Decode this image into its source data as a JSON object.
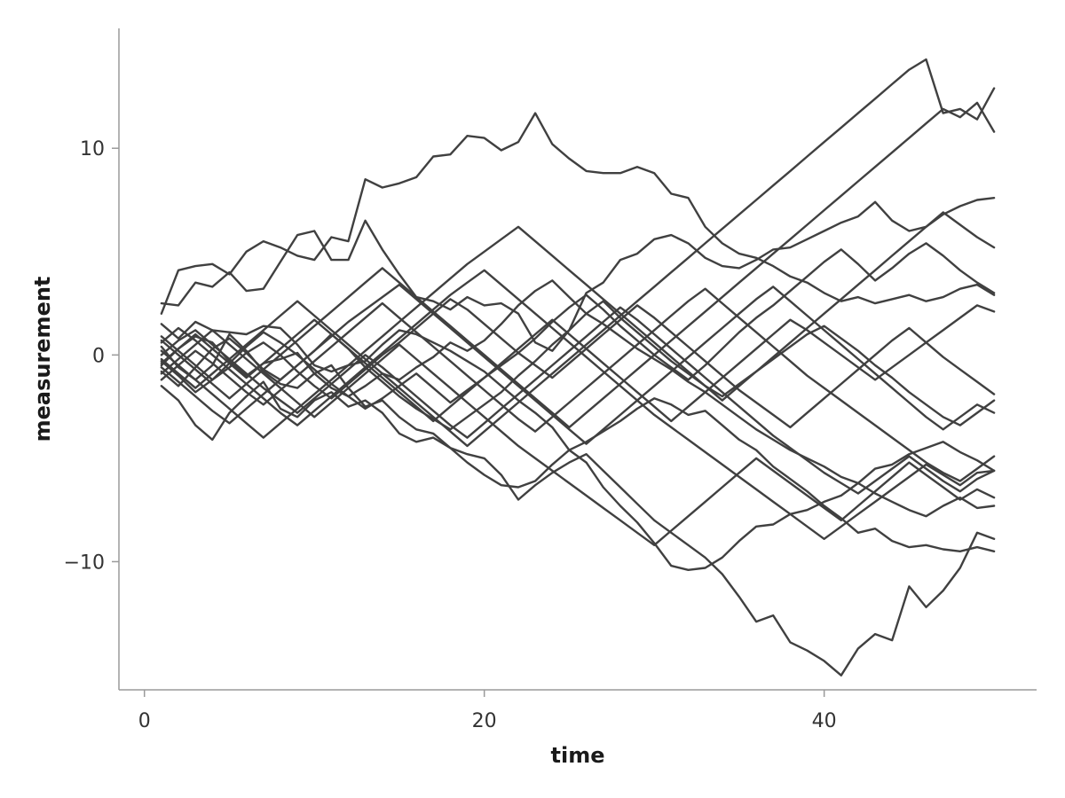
{
  "chart_data": {
    "type": "line",
    "title": "",
    "xlabel": "time",
    "ylabel": "measurement",
    "xlim": [
      -1.5,
      52.5
    ],
    "ylim": [
      -16.2,
      15.8
    ],
    "x_ticks": [
      0,
      20,
      40
    ],
    "y_ticks": [
      -10,
      0,
      10
    ],
    "grid": false,
    "legend": "none",
    "line_color": "#404040",
    "x": [
      1,
      2,
      3,
      4,
      5,
      6,
      7,
      8,
      9,
      10,
      11,
      12,
      13,
      14,
      15,
      16,
      17,
      18,
      19,
      20,
      21,
      22,
      23,
      24,
      25,
      26,
      27,
      28,
      29,
      30,
      31,
      32,
      33,
      34,
      35,
      36,
      37,
      38,
      39,
      40,
      41,
      42,
      43,
      44,
      45,
      46,
      47,
      48,
      49,
      50
    ],
    "series": [
      {
        "values": [
          2.0,
          4.1,
          4.3,
          4.4,
          3.9,
          5.0,
          5.5,
          5.2,
          4.8,
          4.6,
          5.7,
          5.5,
          8.5,
          8.1,
          8.3,
          8.6,
          9.6,
          9.7,
          10.6,
          10.5,
          9.9,
          10.3,
          11.7,
          10.2,
          9.5,
          8.9,
          8.8,
          8.8,
          9.1,
          8.8,
          7.8,
          7.6,
          6.2,
          5.4,
          4.9,
          4.7,
          4.3,
          3.8,
          3.5,
          3.0,
          2.6,
          2.8,
          2.5,
          2.7,
          2.9,
          2.6,
          2.8,
          3.2,
          3.4,
          2.9
        ]
      },
      {
        "values": [
          2.5,
          2.4,
          3.5,
          3.3,
          4.0,
          3.1,
          3.2,
          4.5,
          5.8,
          6.0,
          4.6,
          4.6,
          6.5,
          5.1,
          3.9,
          2.8,
          2.6,
          2.2,
          2.8,
          2.4,
          2.5,
          2.0,
          0.6,
          0.2,
          1.2,
          3.0,
          3.5,
          4.6,
          4.9,
          5.6,
          5.8,
          5.4,
          4.7,
          4.3,
          4.2,
          4.6,
          5.1,
          5.2,
          5.6,
          6.0,
          6.4,
          6.7,
          7.4,
          6.5,
          6.0,
          6.2,
          6.8,
          7.2,
          7.5,
          7.6
        ]
      },
      {
        "values": [
          1.5,
          0.8,
          1.6,
          1.2,
          1.1,
          1.0,
          1.4,
          1.3,
          0.5,
          -0.5,
          -0.8,
          -0.5,
          -0.3,
          0.5,
          1.2,
          1.0,
          0.6,
          0.2,
          -0.3,
          -0.8,
          -1.5,
          -2.2,
          -2.8,
          -3.5,
          -4.6,
          -5.2,
          -6.4,
          -7.3,
          -8.1,
          -9.1,
          -10.2,
          -10.4,
          -10.3,
          -9.8,
          -9.0,
          -8.3,
          -8.2,
          -7.7,
          -7.5,
          -7.1,
          -6.8,
          -6.2,
          -5.5,
          -5.3,
          -4.8,
          -4.5,
          -4.2,
          -4.7,
          -5.1,
          -5.6
        ]
      },
      {
        "values": [
          0.4,
          -0.6,
          -1.2,
          -0.5,
          1.0,
          0.2,
          -0.8,
          -1.4,
          -1.6,
          -0.9,
          -0.5,
          -1.6,
          -2.5,
          -2.2,
          -3.0,
          -3.6,
          -3.8,
          -4.5,
          -5.2,
          -5.8,
          -6.3,
          -6.4,
          -6.1,
          -5.3,
          -4.6,
          -4.2,
          -3.7,
          -3.2,
          -2.6,
          -2.1,
          -2.4,
          -2.9,
          -2.7,
          -3.4,
          -4.1,
          -4.6,
          -5.4,
          -6.0,
          -6.6,
          -7.3,
          -7.9,
          -8.6,
          -8.4,
          -9.0,
          -9.3,
          -9.2,
          -9.4,
          -9.5,
          -9.3,
          -9.5
        ]
      },
      {
        "values": [
          -1.5,
          -2.2,
          -3.4,
          -4.1,
          -2.8,
          -2.0,
          -1.3,
          -2.6,
          -3.0,
          -2.2,
          -1.8,
          -2.5,
          -2.2,
          -2.8,
          -3.8,
          -4.2,
          -4.0,
          -4.5,
          -4.8,
          -5.0,
          -5.8,
          -7.0,
          -6.3,
          -5.7,
          -5.2,
          -4.8,
          -5.6,
          -6.4,
          -7.2,
          -8.0,
          -8.6,
          -9.2,
          -9.8,
          -10.6,
          -11.7,
          -12.9,
          -12.6,
          -13.9,
          -14.3,
          -14.8,
          -15.5,
          -14.2,
          -13.5,
          -13.8,
          -11.2,
          -12.2,
          -11.4,
          -10.3,
          -8.6,
          -8.9
        ]
      },
      {
        "values": [
          -0.5,
          0.3,
          0.9,
          0.6,
          -0.3,
          -1.0,
          -0.4,
          -0.2,
          0.1,
          -0.9,
          -1.6,
          -2.0,
          -1.5,
          -0.9,
          -1.2,
          -0.6,
          -0.1,
          0.6,
          0.2,
          0.7,
          1.5,
          2.4,
          3.1,
          3.6,
          2.8,
          2.0,
          1.5,
          0.9,
          0.3,
          -0.2,
          -0.7,
          -1.3,
          -1.8,
          -2.4,
          -3.0,
          -3.6,
          -4.1,
          -4.6,
          -5.0,
          -5.4,
          -5.9,
          -6.2,
          -6.7,
          -7.1,
          -7.5,
          -7.8,
          -7.3,
          -6.9,
          -7.4,
          -7.3
        ]
      },
      {
        "values": [
          -0.8,
          -1.5,
          -0.6,
          0.3,
          0.8,
          0.1,
          -0.7,
          -1.2,
          -0.5,
          0.2,
          1.0,
          0.3,
          -0.6,
          -1.3,
          -2.0,
          -2.6,
          -3.1,
          -3.6,
          -3.0,
          -2.4,
          -1.8,
          -1.0,
          -0.3,
          0.5,
          1.2,
          2.0,
          2.6,
          1.8,
          1.1,
          0.4,
          -0.3,
          -0.9,
          -1.5,
          -2.0,
          -1.4,
          -0.8,
          -0.2,
          0.4,
          1.0,
          1.4,
          0.8,
          0.2,
          -0.5,
          -1.1,
          -1.8,
          -2.4,
          -3.0,
          -3.4,
          -2.8,
          -2.2
        ]
      },
      {
        "values": [
          -0.3,
          -1.0,
          -1.8,
          -1.2,
          -0.4,
          0.4,
          1.1,
          0.6,
          0.0,
          -0.7,
          -1.4,
          -2.0,
          -2.6,
          -2.1,
          -1.5,
          -0.9,
          -1.6,
          -2.3,
          -1.7,
          -1.1,
          -0.5,
          0.1,
          0.8,
          1.6,
          2.3,
          2.9,
          2.2,
          1.4,
          0.7,
          0.0,
          -0.6,
          -1.2,
          -0.5,
          0.3,
          1.1,
          1.8,
          2.4,
          3.1,
          3.8,
          4.5,
          5.1,
          4.4,
          3.6,
          4.2,
          4.9,
          5.4,
          4.8,
          4.1,
          3.5,
          3.0
        ]
      },
      {
        "values": [
          0.9,
          0.2,
          -0.5,
          -1.2,
          -0.6,
          0.1,
          0.6,
          0.0,
          -0.8,
          -1.5,
          -2.1,
          -1.4,
          -0.7,
          0.0,
          0.6,
          1.3,
          2.0,
          2.7,
          2.2,
          1.5,
          0.8,
          0.1,
          -0.5,
          -1.1,
          -0.4,
          0.3,
          1.0,
          1.7,
          2.4,
          1.8,
          1.1,
          0.4,
          -0.3,
          -1.0,
          -1.7,
          -2.3,
          -2.9,
          -3.5,
          -2.8,
          -2.1,
          -1.4,
          -0.7,
          0.0,
          0.7,
          1.3,
          0.6,
          -0.1,
          -0.7,
          -1.3,
          -1.9
        ]
      },
      {
        "values": [
          -1.2,
          -0.5,
          0.2,
          -0.4,
          -1.1,
          -1.8,
          -2.4,
          -1.7,
          -1.0,
          -0.3,
          0.4,
          1.1,
          1.8,
          2.5,
          1.8,
          1.1,
          0.4,
          -0.3,
          -1.0,
          -1.7,
          -2.4,
          -3.1,
          -3.7,
          -3.0,
          -2.3,
          -1.6,
          -0.9,
          -0.2,
          0.5,
          1.2,
          1.9,
          2.6,
          3.2,
          2.5,
          1.8,
          1.1,
          0.4,
          -0.3,
          -1.0,
          -1.6,
          -2.2,
          -2.8,
          -3.4,
          -4.0,
          -4.6,
          -5.2,
          -5.7,
          -6.1,
          -5.5,
          -4.9
        ]
      },
      {
        "values": [
          0.0,
          0.7,
          1.2,
          0.5,
          -0.2,
          -0.9,
          -1.6,
          -2.2,
          -2.8,
          -2.1,
          -1.4,
          -0.7,
          0.0,
          -0.6,
          -1.3,
          -2.0,
          -2.7,
          -3.4,
          -4.0,
          -3.3,
          -2.6,
          -1.9,
          -1.2,
          -0.5,
          0.2,
          0.9,
          1.6,
          2.3,
          1.7,
          1.0,
          0.3,
          -0.4,
          -1.1,
          -1.8,
          -2.5,
          -3.2,
          -3.9,
          -4.5,
          -5.1,
          -5.7,
          -6.2,
          -6.7,
          -6.1,
          -5.5,
          -4.9,
          -5.5,
          -6.1,
          -6.6,
          -6.0,
          -5.6
        ]
      },
      {
        "values": [
          -0.6,
          -1.3,
          -2.0,
          -2.7,
          -3.3,
          -2.6,
          -1.9,
          -1.2,
          -0.5,
          0.2,
          0.9,
          1.6,
          2.2,
          2.8,
          3.4,
          2.7,
          2.0,
          1.3,
          0.6,
          -0.1,
          -0.8,
          -1.5,
          -2.2,
          -2.9,
          -3.6,
          -4.3,
          -3.6,
          -2.9,
          -2.2,
          -1.5,
          -0.8,
          -0.1,
          0.6,
          1.3,
          2.0,
          2.7,
          3.3,
          2.6,
          1.9,
          1.2,
          0.5,
          -0.2,
          -0.9,
          -1.6,
          -2.3,
          -3.0,
          -3.6,
          -3.0,
          -2.4,
          -2.8
        ]
      },
      {
        "values": [
          0.6,
          1.3,
          0.7,
          0.0,
          -0.7,
          -1.4,
          -2.1,
          -2.8,
          -3.4,
          -2.7,
          -2.0,
          -1.3,
          -0.6,
          0.1,
          0.8,
          1.5,
          2.2,
          2.9,
          3.5,
          4.1,
          3.4,
          2.7,
          2.0,
          1.3,
          0.6,
          -0.1,
          -0.8,
          -1.5,
          -2.2,
          -2.9,
          -3.5,
          -4.1,
          -4.7,
          -5.3,
          -5.9,
          -6.5,
          -7.1,
          -7.7,
          -8.3,
          -8.9,
          -8.3,
          -7.7,
          -7.1,
          -6.5,
          -5.9,
          -5.3,
          -5.8,
          -6.3,
          -5.7,
          -5.6
        ]
      },
      {
        "values": [
          -0.9,
          -0.2,
          0.5,
          1.2,
          0.5,
          -0.2,
          -0.9,
          -1.6,
          -2.3,
          -3.0,
          -2.3,
          -1.6,
          -0.9,
          -0.2,
          0.5,
          -0.2,
          -0.9,
          -1.6,
          -2.3,
          -3.0,
          -3.7,
          -4.4,
          -5.0,
          -5.6,
          -6.2,
          -6.8,
          -7.4,
          -8.0,
          -8.6,
          -9.2,
          -8.5,
          -7.8,
          -7.1,
          -6.4,
          -5.7,
          -5.0,
          -5.6,
          -6.2,
          -6.8,
          -7.4,
          -8.0,
          -7.3,
          -6.6,
          -5.9,
          -5.2,
          -5.8,
          -6.4,
          -7.0,
          -6.5,
          -6.9
        ]
      },
      {
        "values": [
          0.2,
          -0.5,
          -1.2,
          -1.9,
          -2.6,
          -3.3,
          -4.0,
          -3.3,
          -2.6,
          -1.9,
          -1.2,
          -0.5,
          0.2,
          0.9,
          1.6,
          2.3,
          3.0,
          3.7,
          4.4,
          5.0,
          5.6,
          6.2,
          5.5,
          4.8,
          4.1,
          3.4,
          2.7,
          2.0,
          1.3,
          0.6,
          -0.1,
          -0.8,
          -1.5,
          -2.2,
          -1.5,
          -0.8,
          -0.1,
          0.6,
          1.3,
          2.0,
          2.7,
          3.4,
          4.1,
          4.8,
          5.5,
          6.2,
          6.9,
          6.3,
          5.7,
          5.2
        ]
      },
      {
        "values": [
          -0.4,
          0.3,
          1.0,
          0.3,
          -0.4,
          -1.1,
          -0.4,
          0.3,
          1.0,
          1.7,
          1.0,
          0.3,
          -0.4,
          -1.1,
          -1.8,
          -2.5,
          -3.2,
          -2.5,
          -1.8,
          -1.1,
          -0.4,
          0.3,
          1.0,
          1.7,
          1.0,
          0.3,
          -0.4,
          -1.1,
          -1.8,
          -2.5,
          -3.2,
          -2.5,
          -1.8,
          -1.1,
          -0.4,
          0.3,
          1.0,
          1.7,
          1.2,
          0.6,
          0.0,
          -0.6,
          -1.2,
          -0.6,
          0.0,
          0.6,
          1.2,
          1.8,
          2.4,
          2.1
        ]
      },
      {
        "values": [
          0.7,
          0.0,
          -0.7,
          -1.4,
          -2.1,
          -1.4,
          -0.7,
          0.0,
          0.7,
          1.4,
          2.1,
          2.8,
          3.5,
          4.2,
          3.5,
          2.8,
          2.1,
          1.4,
          0.7,
          0.0,
          -0.7,
          -1.4,
          -2.1,
          -2.8,
          -3.5,
          -2.8,
          -2.1,
          -1.4,
          -0.7,
          0.0,
          0.7,
          1.4,
          2.1,
          2.8,
          3.5,
          4.2,
          4.9,
          5.6,
          6.3,
          7.0,
          7.7,
          8.4,
          9.1,
          9.8,
          10.5,
          11.2,
          11.9,
          11.5,
          12.2,
          10.8
        ]
      },
      {
        "values": [
          -0.2,
          -0.9,
          -1.6,
          -0.9,
          -0.2,
          0.5,
          1.2,
          1.9,
          2.6,
          1.9,
          1.2,
          0.5,
          -0.2,
          -0.9,
          -1.6,
          -2.3,
          -3.0,
          -3.7,
          -4.4,
          -3.7,
          -3.0,
          -2.3,
          -1.6,
          -0.9,
          -0.2,
          0.5,
          1.2,
          1.9,
          2.6,
          3.3,
          4.0,
          4.7,
          5.4,
          6.1,
          6.8,
          7.5,
          8.2,
          8.9,
          9.6,
          10.3,
          11.0,
          11.7,
          12.4,
          13.1,
          13.8,
          14.3,
          11.7,
          11.9,
          11.4,
          12.9
        ]
      }
    ]
  }
}
